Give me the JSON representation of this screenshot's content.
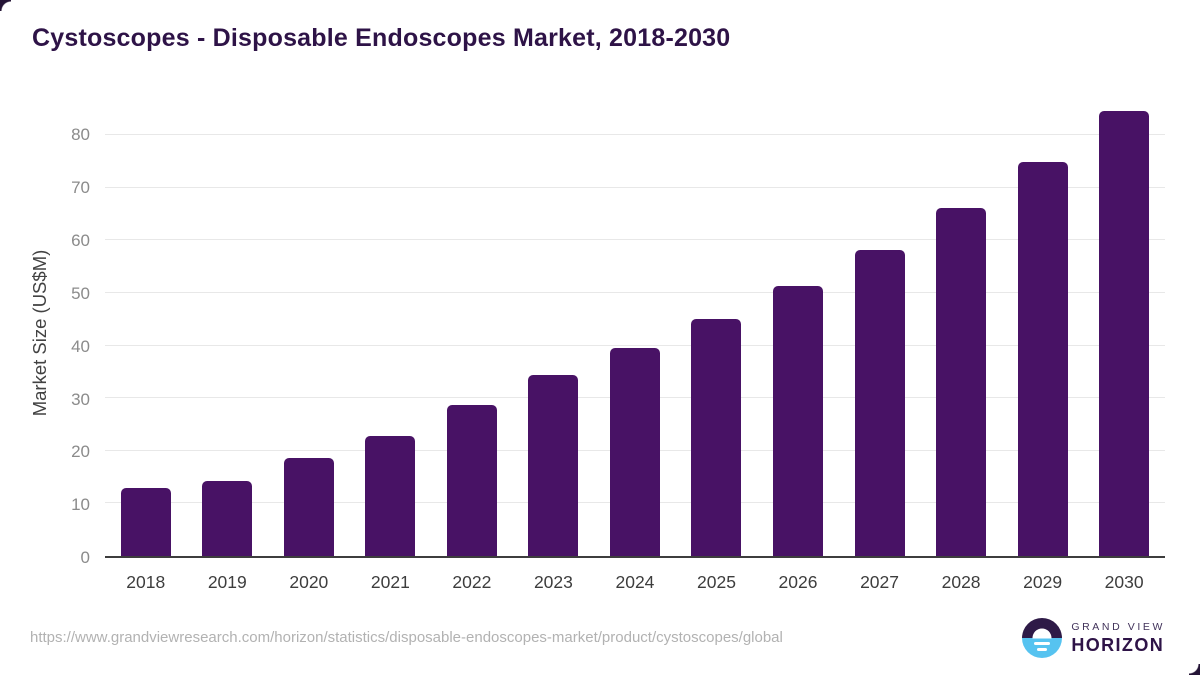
{
  "title": "Cystoscopes - Disposable Endoscopes Market, 2018-2030",
  "chart_data": {
    "type": "bar",
    "title": "Cystoscopes - Disposable Endoscopes Market, 2018-2030",
    "categories": [
      "2018",
      "2019",
      "2020",
      "2021",
      "2022",
      "2023",
      "2024",
      "2025",
      "2026",
      "2027",
      "2028",
      "2029",
      "2030"
    ],
    "values": [
      13.0,
      14.3,
      18.7,
      22.8,
      28.7,
      34.4,
      39.6,
      45.1,
      51.4,
      58.2,
      66.1,
      74.9,
      84.6
    ],
    "xlabel": "",
    "ylabel": "Market Size (US$M)",
    "ylim": [
      0,
      85
    ],
    "yticks": [
      0,
      10,
      20,
      30,
      40,
      50,
      60,
      70,
      80
    ],
    "grid": true,
    "legend": "none",
    "bar_color": "#481265"
  },
  "colors": {
    "title_text": "#2e1347",
    "bar": "#481265",
    "gridline": "#e8e8e8",
    "axis_line": "#3d3d3d",
    "y_tick_text": "#8b8b8b",
    "x_tick_text": "#3d3d3d",
    "source_text": "#b2b2b2",
    "logo_blue": "#56c3f0",
    "logo_purple": "#2e1a47"
  },
  "footer": {
    "source_url": "https://www.grandviewresearch.com/horizon/statistics/disposable-endoscopes-market/product/cystoscopes/global",
    "logo": {
      "line1": "GRAND VIEW",
      "line2": "HORIZON"
    }
  }
}
